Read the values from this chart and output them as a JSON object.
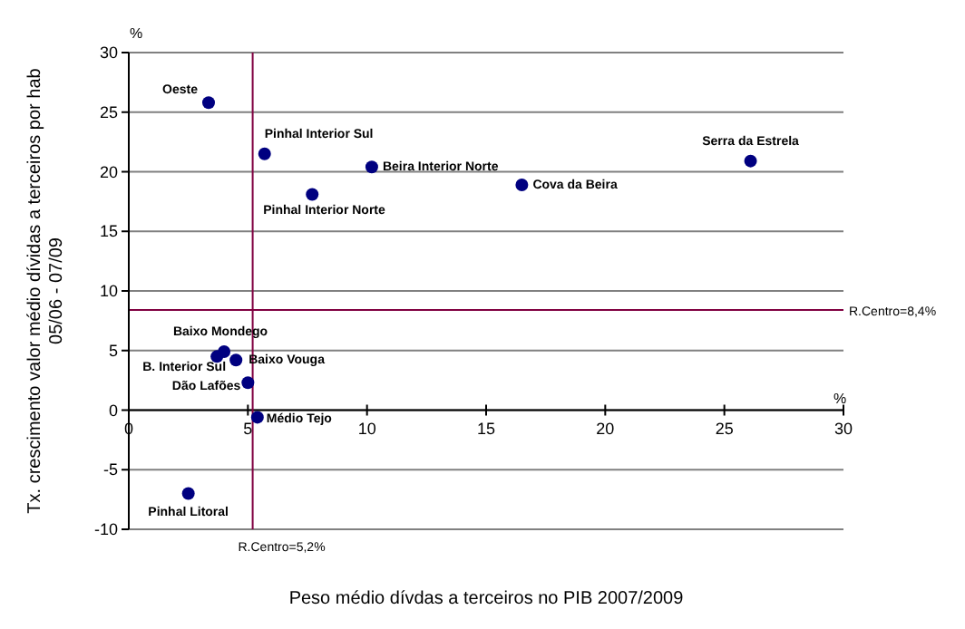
{
  "chart_data": {
    "type": "scatter",
    "xlabel": "Peso médio dívdas a terceiros no PIB 2007/2009",
    "ylabel": "Tx. crescimento valor médio dívidas a terceiros por hab 05/06 - 07/09",
    "series": [
      {
        "color": "#000080",
        "x": [
          3.35,
          5.7,
          10.2,
          7.7,
          16.5,
          26.1,
          4.0,
          3.7,
          4.5,
          5.0,
          5.4,
          2.5
        ],
        "values": [
          25.8,
          21.5,
          20.4,
          18.1,
          18.9,
          20.9,
          4.9,
          4.5,
          4.2,
          2.3,
          -0.6,
          -7.0
        ]
      }
    ],
    "xlim": [
      0,
      30
    ],
    "xticks": [
      0,
      5,
      10,
      15,
      20,
      25,
      30
    ],
    "ylim": [
      -10,
      30
    ],
    "yticks": [
      -10,
      -5,
      0,
      5,
      10,
      15,
      20,
      25,
      30
    ],
    "grid": "y",
    "marker": "circle",
    "ref_lines": [
      {
        "axis": "y",
        "value": 8.4,
        "label": "R.Centro=8,4%",
        "color": "#800040"
      },
      {
        "axis": "x",
        "value": 5.2,
        "label": "R.Centro=5,2%",
        "color": "#800040"
      }
    ],
    "annotations": [
      {
        "text": "Oeste",
        "x": 3.35,
        "y": 25.8
      },
      {
        "text": "Pinhal Interior Sul",
        "x": 5.7,
        "y": 21.5
      },
      {
        "text": "Beira Interior Norte",
        "x": 10.2,
        "y": 20.4
      },
      {
        "text": "Pinhal Interior Norte",
        "x": 7.7,
        "y": 18.1
      },
      {
        "text": "Cova da Beira",
        "x": 16.5,
        "y": 18.9
      },
      {
        "text": "Serra da Estrela",
        "x": 26.1,
        "y": 20.9
      },
      {
        "text": "Baixo Mondego",
        "x": 4.0,
        "y": 4.9
      },
      {
        "text": "B. Interior Sul",
        "x": 3.7,
        "y": 4.5
      },
      {
        "text": "Baixo Vouga",
        "x": 4.5,
        "y": 4.2
      },
      {
        "text": "Dão Lafões",
        "x": 5.0,
        "y": 2.3
      },
      {
        "text": "Médio Tejo",
        "x": 5.4,
        "y": -0.6
      },
      {
        "text": "Pinhal Litoral",
        "x": 2.5,
        "y": -7.0
      },
      "%",
      "%"
    ]
  }
}
